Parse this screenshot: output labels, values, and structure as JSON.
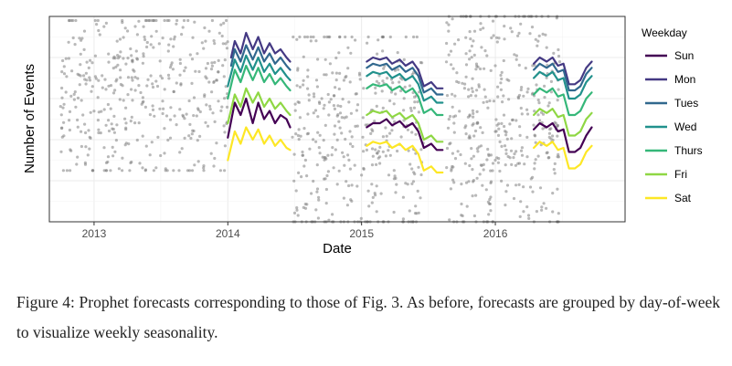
{
  "chart_data": {
    "type": "line",
    "xlabel": "Date",
    "ylabel": "Number of Events",
    "x_ticks": [
      "2013",
      "2014",
      "2015",
      "2016"
    ],
    "xlim": [
      "2012-09-01",
      "2016-12-20"
    ],
    "ylim": [
      0,
      100
    ],
    "grid": true,
    "legend": {
      "title": "Weekday",
      "position": "right"
    },
    "series": [
      {
        "name": "Sun",
        "color": "#440154",
        "segments": [
          {
            "x": [
              "2014-01-01",
              "2014-01-20",
              "2014-02-05",
              "2014-02-20",
              "2014-03-10",
              "2014-03-25",
              "2014-04-10",
              "2014-04-25",
              "2014-05-10",
              "2014-05-25",
              "2014-06-10",
              "2014-06-20"
            ],
            "y": [
              41,
              58,
              52,
              60,
              48,
              58,
              50,
              54,
              48,
              52,
              50,
              46
            ]
          },
          {
            "x": [
              "2015-01-15",
              "2015-02-01",
              "2015-02-20",
              "2015-03-10",
              "2015-03-25",
              "2015-04-15",
              "2015-05-01",
              "2015-05-20",
              "2015-06-05",
              "2015-06-20",
              "2015-07-10",
              "2015-07-25",
              "2015-08-10"
            ],
            "y": [
              46,
              48,
              48,
              50,
              47,
              49,
              46,
              48,
              44,
              36,
              38,
              35,
              35
            ]
          },
          {
            "x": [
              "2016-04-15",
              "2016-05-01",
              "2016-05-20",
              "2016-06-05",
              "2016-06-20",
              "2016-07-05",
              "2016-07-20",
              "2016-08-05",
              "2016-08-20",
              "2016-09-05",
              "2016-09-20"
            ],
            "y": [
              45,
              48,
              46,
              48,
              44,
              45,
              34,
              34,
              36,
              42,
              46
            ]
          }
        ]
      },
      {
        "name": "Mon",
        "color": "#443983",
        "segments": [
          {
            "x": [
              "2014-01-10",
              "2014-01-20",
              "2014-02-05",
              "2014-02-20",
              "2014-03-10",
              "2014-03-25",
              "2014-04-10",
              "2014-04-25",
              "2014-05-10",
              "2014-05-25",
              "2014-06-10",
              "2014-06-20"
            ],
            "y": [
              80,
              88,
              82,
              92,
              84,
              90,
              82,
              87,
              82,
              84,
              80,
              78
            ]
          },
          {
            "x": [
              "2015-01-15",
              "2015-02-01",
              "2015-02-20",
              "2015-03-10",
              "2015-03-25",
              "2015-04-15",
              "2015-05-01",
              "2015-05-20",
              "2015-06-05",
              "2015-06-20",
              "2015-07-10",
              "2015-07-25",
              "2015-08-10"
            ],
            "y": [
              78,
              80,
              79,
              80,
              77,
              79,
              76,
              78,
              74,
              66,
              68,
              65,
              65
            ]
          },
          {
            "x": [
              "2016-04-15",
              "2016-05-01",
              "2016-05-20",
              "2016-06-05",
              "2016-06-20",
              "2016-07-05",
              "2016-07-20",
              "2016-08-05",
              "2016-08-20",
              "2016-09-05",
              "2016-09-20"
            ],
            "y": [
              77,
              80,
              78,
              80,
              76,
              77,
              67,
              67,
              69,
              75,
              78
            ]
          }
        ]
      },
      {
        "name": "Tues",
        "color": "#31688e",
        "segments": [
          {
            "x": [
              "2014-01-10",
              "2014-01-20",
              "2014-02-05",
              "2014-02-20",
              "2014-03-10",
              "2014-03-25",
              "2014-04-10",
              "2014-04-25",
              "2014-05-10",
              "2014-05-25",
              "2014-06-10",
              "2014-06-20"
            ],
            "y": [
              76,
              84,
              78,
              86,
              79,
              85,
              78,
              82,
              77,
              80,
              76,
              74
            ]
          },
          {
            "x": [
              "2015-01-15",
              "2015-02-01",
              "2015-02-20",
              "2015-03-10",
              "2015-03-25",
              "2015-04-15",
              "2015-05-01",
              "2015-05-20",
              "2015-06-05",
              "2015-06-20",
              "2015-07-10",
              "2015-07-25",
              "2015-08-10"
            ],
            "y": [
              75,
              77,
              76,
              77,
              74,
              76,
              73,
              75,
              71,
              63,
              65,
              62,
              62
            ]
          },
          {
            "x": [
              "2016-04-15",
              "2016-05-01",
              "2016-05-20",
              "2016-06-05",
              "2016-06-20",
              "2016-07-05",
              "2016-07-20",
              "2016-08-05",
              "2016-08-20",
              "2016-09-05",
              "2016-09-20"
            ],
            "y": [
              74,
              77,
              75,
              77,
              73,
              74,
              64,
              64,
              66,
              72,
              75
            ]
          }
        ]
      },
      {
        "name": "Wed",
        "color": "#21918c",
        "segments": [
          {
            "x": [
              "2014-01-01",
              "2014-01-20",
              "2014-02-05",
              "2014-02-20",
              "2014-03-10",
              "2014-03-25",
              "2014-04-10",
              "2014-04-25",
              "2014-05-10",
              "2014-05-25",
              "2014-06-10",
              "2014-06-20"
            ],
            "y": [
              66,
              79,
              73,
              81,
              74,
              80,
              73,
              77,
              72,
              75,
              71,
              69
            ]
          },
          {
            "x": [
              "2015-01-15",
              "2015-02-01",
              "2015-02-20",
              "2015-03-10",
              "2015-03-25",
              "2015-04-15",
              "2015-05-01",
              "2015-05-20",
              "2015-06-05",
              "2015-06-20",
              "2015-07-10",
              "2015-07-25",
              "2015-08-10"
            ],
            "y": [
              71,
              73,
              72,
              73,
              70,
              72,
              69,
              71,
              67,
              59,
              61,
              58,
              58
            ]
          },
          {
            "x": [
              "2016-04-15",
              "2016-05-01",
              "2016-05-20",
              "2016-06-05",
              "2016-06-20",
              "2016-07-05",
              "2016-07-20",
              "2016-08-05",
              "2016-08-20",
              "2016-09-05",
              "2016-09-20"
            ],
            "y": [
              70,
              73,
              71,
              73,
              69,
              70,
              60,
              60,
              62,
              68,
              71
            ]
          }
        ]
      },
      {
        "name": "Thurs",
        "color": "#35b779",
        "segments": [
          {
            "x": [
              "2014-01-01",
              "2014-01-20",
              "2014-02-05",
              "2014-02-20",
              "2014-03-10",
              "2014-03-25",
              "2014-04-10",
              "2014-04-25",
              "2014-05-10",
              "2014-05-25",
              "2014-06-10",
              "2014-06-20"
            ],
            "y": [
              60,
              74,
              68,
              76,
              69,
              75,
              68,
              72,
              67,
              70,
              66,
              64
            ]
          },
          {
            "x": [
              "2015-01-15",
              "2015-02-01",
              "2015-02-20",
              "2015-03-10",
              "2015-03-25",
              "2015-04-15",
              "2015-05-01",
              "2015-05-20",
              "2015-06-05",
              "2015-06-20",
              "2015-07-10",
              "2015-07-25",
              "2015-08-10"
            ],
            "y": [
              65,
              67,
              66,
              67,
              64,
              66,
              63,
              65,
              61,
              53,
              55,
              52,
              52
            ]
          },
          {
            "x": [
              "2016-04-15",
              "2016-05-01",
              "2016-05-20",
              "2016-06-05",
              "2016-06-20",
              "2016-07-05",
              "2016-07-20",
              "2016-08-05",
              "2016-08-20",
              "2016-09-05",
              "2016-09-20"
            ],
            "y": [
              62,
              65,
              63,
              65,
              61,
              62,
              52,
              52,
              54,
              60,
              63
            ]
          }
        ]
      },
      {
        "name": "Fri",
        "color": "#8fd744",
        "segments": [
          {
            "x": [
              "2014-01-01",
              "2014-01-20",
              "2014-02-05",
              "2014-02-20",
              "2014-03-10",
              "2014-03-25",
              "2014-04-10",
              "2014-04-25",
              "2014-05-10",
              "2014-05-25",
              "2014-06-10",
              "2014-06-20"
            ],
            "y": [
              48,
              62,
              56,
              65,
              58,
              63,
              56,
              60,
              55,
              58,
              54,
              52
            ]
          },
          {
            "x": [
              "2015-01-15",
              "2015-02-01",
              "2015-02-20",
              "2015-03-10",
              "2015-03-25",
              "2015-04-15",
              "2015-05-01",
              "2015-05-20",
              "2015-06-05",
              "2015-06-20",
              "2015-07-10",
              "2015-07-25",
              "2015-08-10"
            ],
            "y": [
              52,
              54,
              53,
              54,
              51,
              53,
              50,
              52,
              48,
              40,
              42,
              39,
              39
            ]
          },
          {
            "x": [
              "2016-04-15",
              "2016-05-01",
              "2016-05-20",
              "2016-06-05",
              "2016-06-20",
              "2016-07-05",
              "2016-07-20",
              "2016-08-05",
              "2016-08-20",
              "2016-09-05",
              "2016-09-20"
            ],
            "y": [
              52,
              55,
              53,
              55,
              51,
              52,
              42,
              42,
              44,
              50,
              53
            ]
          }
        ]
      },
      {
        "name": "Sat",
        "color": "#fde725",
        "segments": [
          {
            "x": [
              "2014-01-01",
              "2014-01-20",
              "2014-02-05",
              "2014-02-20",
              "2014-03-10",
              "2014-03-25",
              "2014-04-10",
              "2014-04-25",
              "2014-05-10",
              "2014-05-25",
              "2014-06-10",
              "2014-06-20"
            ],
            "y": [
              30,
              44,
              38,
              46,
              40,
              45,
              38,
              42,
              37,
              40,
              36,
              35
            ]
          },
          {
            "x": [
              "2015-01-15",
              "2015-02-01",
              "2015-02-20",
              "2015-03-10",
              "2015-03-25",
              "2015-04-15",
              "2015-05-01",
              "2015-05-20",
              "2015-06-05",
              "2015-06-20",
              "2015-07-10",
              "2015-07-25",
              "2015-08-10"
            ],
            "y": [
              37,
              39,
              38,
              39,
              36,
              38,
              35,
              37,
              33,
              25,
              27,
              24,
              24
            ]
          },
          {
            "x": [
              "2016-04-15",
              "2016-05-01",
              "2016-05-20",
              "2016-06-05",
              "2016-06-20",
              "2016-07-05",
              "2016-07-20",
              "2016-08-05",
              "2016-08-20",
              "2016-09-05",
              "2016-09-20"
            ],
            "y": [
              36,
              39,
              37,
              39,
              35,
              36,
              26,
              26,
              28,
              34,
              37
            ]
          }
        ]
      }
    ],
    "observed_points": {
      "color": "#7f7f7f",
      "periods": [
        {
          "from": "2012-10-01",
          "to": "2014-01-01",
          "low": 25,
          "high": 98,
          "n": 420
        },
        {
          "from": "2014-06-25",
          "to": "2015-06-20",
          "low": 0,
          "high": 90,
          "n": 390
        },
        {
          "from": "2015-08-20",
          "to": "2016-06-25",
          "low": 0,
          "high": 100,
          "n": 400
        }
      ]
    }
  },
  "caption": "Figure 4:  Prophet forecasts corresponding to those of Fig.  3.  As before, forecasts are grouped by day-of-week to visualize weekly seasonality."
}
